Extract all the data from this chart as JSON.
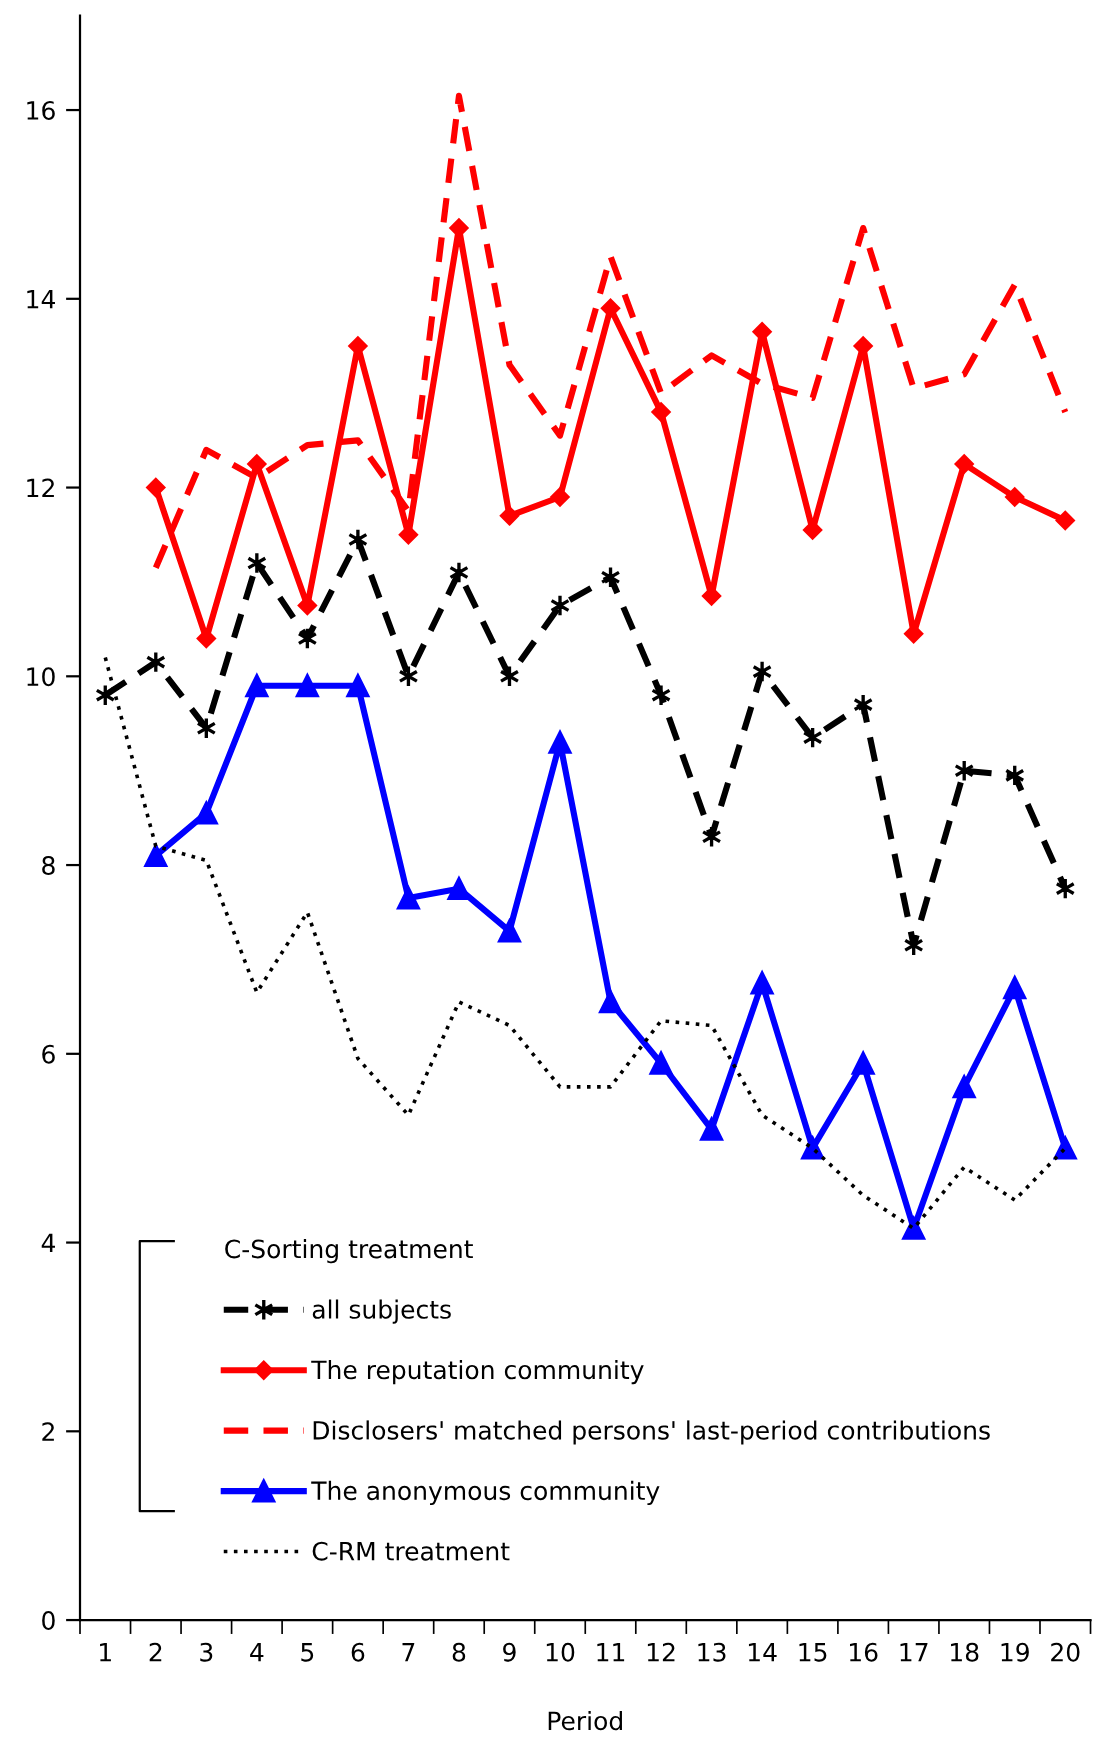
{
  "chart_data": {
    "type": "line",
    "xlabel": "Period",
    "legend_title": "C-Sorting treatment",
    "legend": "bottom left",
    "grid": false,
    "categories": [
      "1",
      "2",
      "3",
      "4",
      "5",
      "6",
      "7",
      "8",
      "9",
      "10",
      "11",
      "12",
      "13",
      "14",
      "15",
      "16",
      "17",
      "18",
      "19",
      "20"
    ],
    "ylim": [
      0,
      17
    ],
    "yticks": [
      0,
      2,
      4,
      6,
      8,
      10,
      12,
      14,
      16
    ],
    "series": [
      {
        "name": "all subjects",
        "color": "#000000",
        "marker": "cross",
        "line_style": "dashed",
        "values": [
          9.8,
          10.15,
          9.45,
          11.2,
          10.4,
          11.45,
          10.0,
          11.1,
          10.0,
          10.75,
          11.05,
          9.8,
          8.3,
          10.05,
          9.35,
          9.7,
          7.15,
          9.0,
          8.95,
          7.75
        ]
      },
      {
        "name": "The reputation community",
        "color": "#ff0000",
        "marker": "diamond",
        "line_style": "solid",
        "values": [
          null,
          12.0,
          10.4,
          12.25,
          10.75,
          13.5,
          11.5,
          14.75,
          11.7,
          11.9,
          13.9,
          12.8,
          10.85,
          13.65,
          11.55,
          13.5,
          10.45,
          12.25,
          11.9,
          11.65
        ]
      },
      {
        "name": "Disclosers' matched persons' last-period contributions",
        "color": "#ff0000",
        "marker": "none",
        "line_style": "dashed",
        "values": [
          null,
          11.15,
          12.4,
          12.1,
          12.45,
          12.5,
          11.75,
          16.15,
          13.3,
          12.55,
          14.45,
          13.0,
          13.4,
          13.1,
          12.95,
          14.75,
          13.05,
          13.2,
          14.15,
          12.8
        ]
      },
      {
        "name": "The anonymous community",
        "color": "#0000ff",
        "marker": "triangle",
        "line_style": "solid",
        "values": [
          null,
          8.1,
          8.55,
          9.9,
          9.9,
          9.9,
          7.65,
          7.75,
          7.3,
          9.3,
          6.55,
          5.9,
          5.2,
          6.75,
          5.0,
          5.9,
          4.15,
          5.65,
          6.7,
          5.0
        ]
      },
      {
        "name": "C-RM treatment",
        "color": "#000000",
        "marker": "none",
        "line_style": "dotted",
        "values": [
          10.2,
          8.2,
          8.05,
          6.65,
          7.5,
          5.95,
          5.35,
          6.55,
          6.3,
          5.65,
          5.65,
          6.35,
          6.3,
          5.35,
          5.0,
          4.5,
          4.15,
          4.8,
          4.45,
          5.0
        ]
      }
    ]
  }
}
